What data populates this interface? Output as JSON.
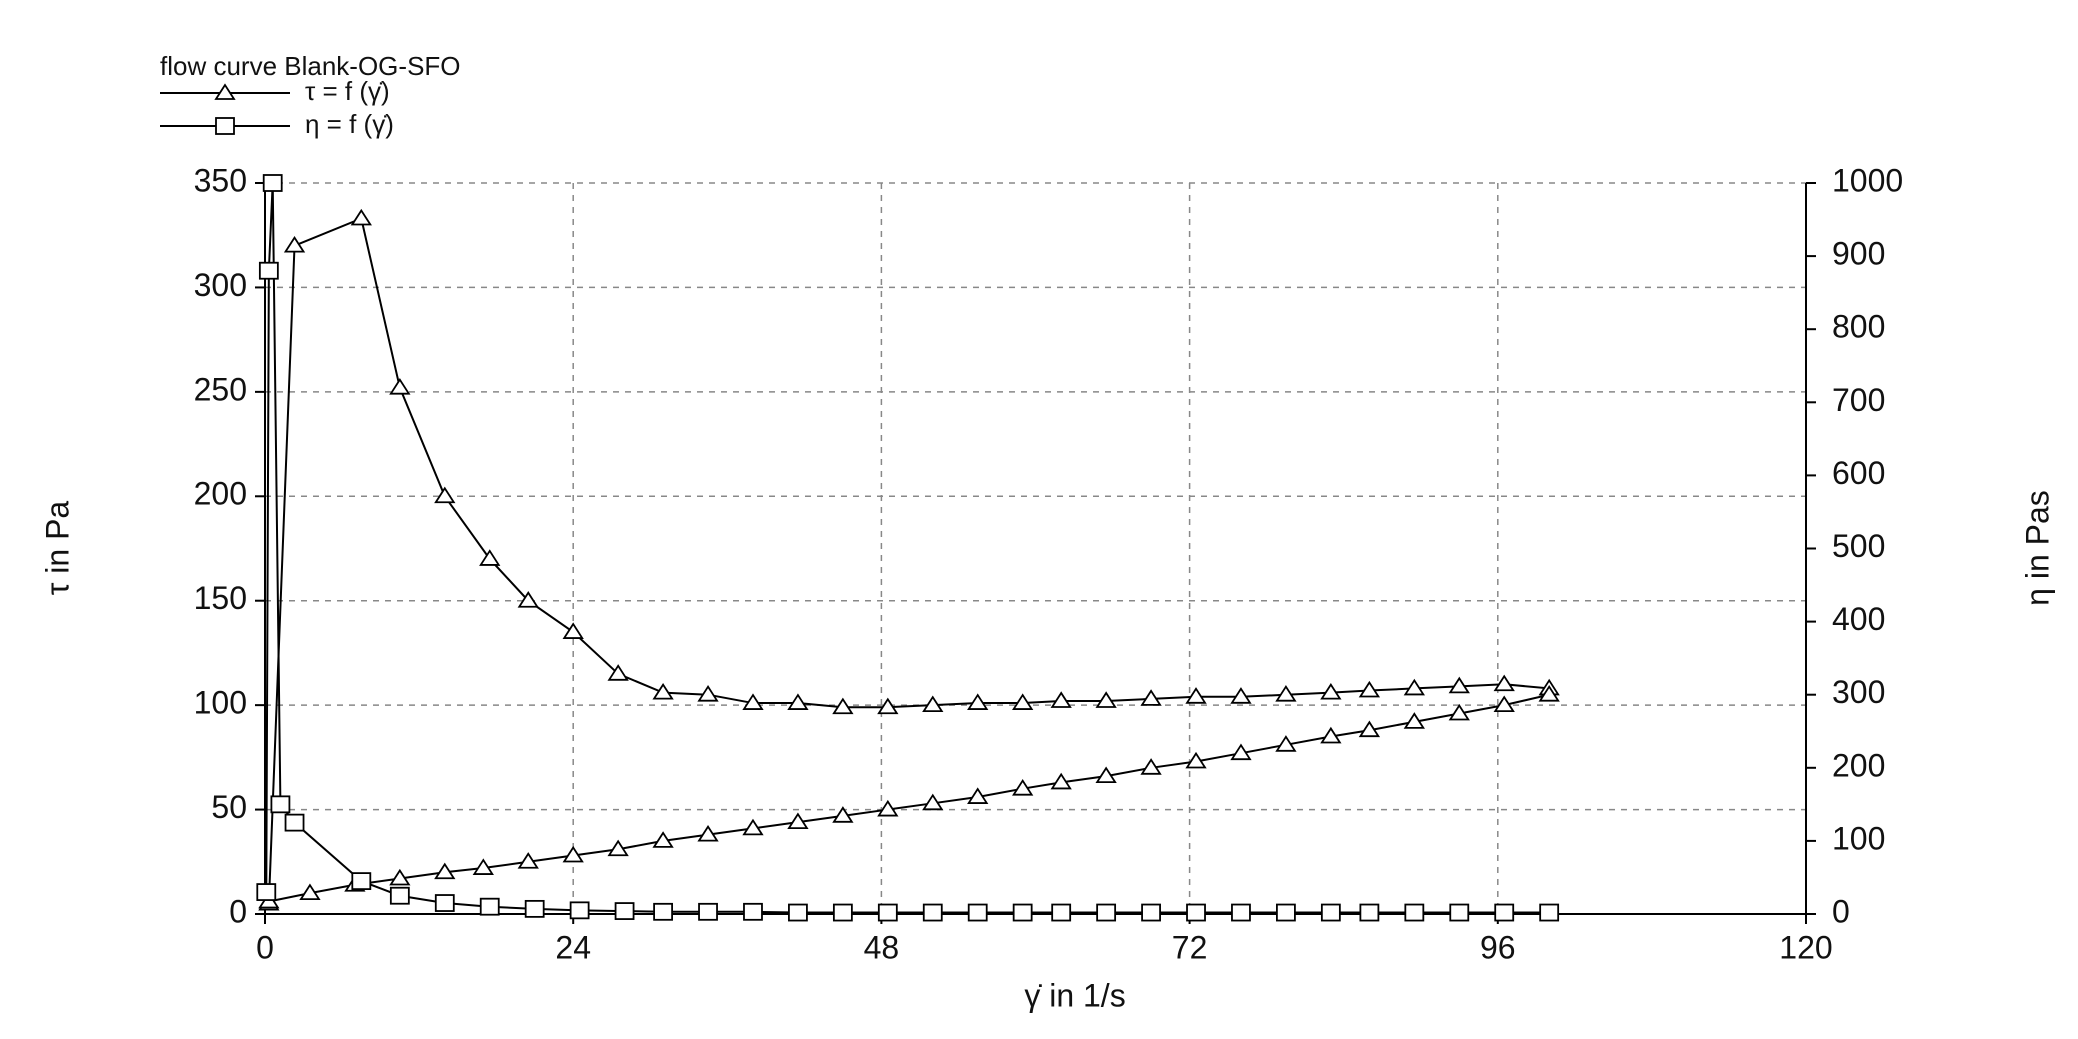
{
  "chart_data": {
    "type": "line",
    "legend_title": "flow curve Blank-OG-SFO",
    "xlabel": "γ̇ in 1/s",
    "ylabel": "τ in Pa",
    "y2label": "η in Pas",
    "xlim": [
      0,
      120
    ],
    "xticks": [
      0,
      24,
      48,
      72,
      96,
      120
    ],
    "ylim": [
      0,
      350
    ],
    "yticks": [
      0,
      50,
      100,
      150,
      200,
      250,
      300,
      350
    ],
    "y2lim": [
      0,
      1000
    ],
    "y2ticks": [
      0,
      100,
      200,
      300,
      400,
      500,
      600,
      700,
      800,
      900,
      1000
    ],
    "grid": true,
    "legend": "top-left",
    "series": [
      {
        "name": "τ = f (γ̇)",
        "color": "#000000",
        "marker": "triangle",
        "x": [
          0.3,
          2.3,
          7.5,
          10.5,
          14,
          17.5,
          20.5,
          24,
          27.5,
          31,
          34.5,
          38,
          41.5,
          45,
          48.5,
          52,
          55.5,
          59,
          62,
          65.5,
          69,
          72.5,
          76,
          79.5,
          83,
          86,
          89.5,
          93,
          96.5,
          100,
          100,
          96.5,
          93,
          89.5,
          86,
          83,
          79.5,
          76,
          72.5,
          69,
          65.5,
          62,
          59,
          55.5,
          52,
          48.5,
          45,
          41.5,
          38,
          34.5,
          31,
          27.5,
          24,
          20.5,
          17,
          14,
          10.5,
          7,
          3.5,
          0.3
        ],
        "values": [
          5,
          320,
          333,
          252,
          200,
          170,
          150,
          135,
          115,
          106,
          105,
          101,
          101,
          99,
          99,
          100,
          101,
          101,
          102,
          102,
          103,
          104,
          104,
          105,
          106,
          107,
          108,
          109,
          110,
          108,
          105,
          100,
          96,
          92,
          88,
          85,
          81,
          77,
          73,
          70,
          66,
          63,
          60,
          56,
          53,
          50,
          47,
          44,
          41,
          38,
          35,
          31,
          28,
          25,
          22,
          20,
          17,
          14,
          10,
          6
        ]
      },
      {
        "name": "η = f (γ̇)",
        "color": "#000000",
        "marker": "square",
        "axis": "y2",
        "x": [
          0.1,
          0.3,
          0.6,
          1.2,
          2.3,
          7.5,
          10.5,
          14,
          17.5,
          21,
          24.5,
          28,
          31,
          34.5,
          38,
          41.5,
          45,
          48.5,
          52,
          55.5,
          59,
          62,
          65.5,
          69,
          72.5,
          76,
          79.5,
          83,
          86,
          89.5,
          93,
          96.5,
          100
        ],
        "values": [
          30,
          880,
          1000,
          150,
          125,
          45,
          25,
          15,
          10,
          7,
          5,
          4,
          3,
          3,
          3,
          2,
          2,
          2,
          2,
          2,
          2,
          2,
          2,
          2,
          2,
          2,
          2,
          2,
          2,
          2,
          2,
          2,
          2
        ]
      }
    ]
  }
}
